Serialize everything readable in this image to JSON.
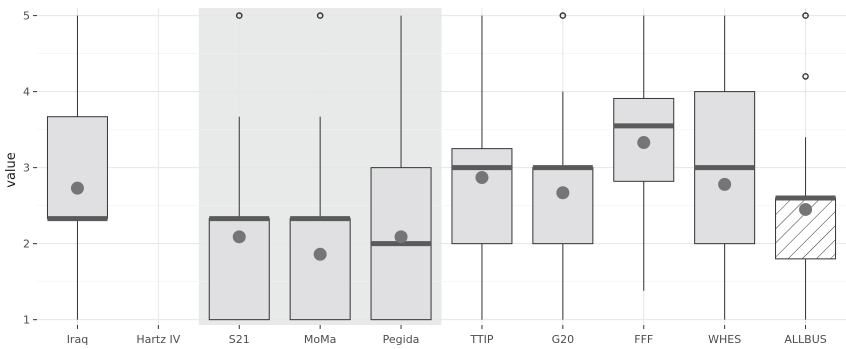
{
  "chart_data": {
    "type": "boxplot",
    "title": "",
    "xlabel": "",
    "ylabel": "value",
    "ylim": [
      0.93,
      5.1
    ],
    "y_ticks": [
      1,
      2,
      3,
      4,
      5
    ],
    "grid": true,
    "highlight_band": [
      "S21",
      "Pegida"
    ],
    "colors": {
      "box_fill": "#e0e0e3",
      "band_fill": "#e8eaea",
      "median": "#5a5a5a",
      "mean_point": "#757575",
      "grid_major": "#e6e6e6",
      "grid_minor": "#f2f2f2",
      "whisker": "#333333"
    },
    "categories": [
      "Iraq",
      "Hartz IV",
      "S21",
      "MoMa",
      "Pegida",
      "TTIP",
      "G20",
      "FFF",
      "WHES",
      "ALLBUS"
    ],
    "boxes": [
      {
        "category": "Iraq",
        "min": 1,
        "q1": 2.33,
        "median": 2.33,
        "q3": 3.67,
        "max": 5,
        "mean": 2.73,
        "outliers": [],
        "hatched": false
      },
      {
        "category": "Hartz IV",
        "min": null,
        "q1": null,
        "median": null,
        "q3": null,
        "max": null,
        "mean": null,
        "outliers": [],
        "hatched": false
      },
      {
        "category": "S21",
        "min": 1,
        "q1": 1,
        "median": 2.33,
        "q3": 2.33,
        "max": 3.67,
        "mean": 2.09,
        "outliers": [
          5
        ],
        "hatched": false
      },
      {
        "category": "MoMa",
        "min": 1,
        "q1": 1,
        "median": 2.33,
        "q3": 2.33,
        "max": 3.67,
        "mean": 1.86,
        "outliers": [
          5
        ],
        "hatched": false
      },
      {
        "category": "Pegida",
        "min": 1,
        "q1": 1,
        "median": 2,
        "q3": 3,
        "max": 5,
        "mean": 2.09,
        "outliers": [],
        "hatched": false
      },
      {
        "category": "TTIP",
        "min": 1,
        "q1": 2,
        "median": 3,
        "q3": 3.25,
        "max": 5,
        "mean": 2.87,
        "outliers": [],
        "hatched": false
      },
      {
        "category": "G20",
        "min": 1,
        "q1": 2,
        "median": 3,
        "q3": 3,
        "max": 4,
        "mean": 2.67,
        "outliers": [
          5
        ],
        "hatched": false
      },
      {
        "category": "FFF",
        "min": 1.38,
        "q1": 2.82,
        "median": 3.55,
        "q3": 3.91,
        "max": 5,
        "mean": 3.33,
        "outliers": [],
        "hatched": false
      },
      {
        "category": "WHES",
        "min": 1,
        "q1": 2,
        "median": 3,
        "q3": 4,
        "max": 5,
        "mean": 2.78,
        "outliers": [],
        "hatched": false
      },
      {
        "category": "ALLBUS",
        "min": 1,
        "q1": 1.8,
        "median": 2.6,
        "q3": 2.6,
        "max": 3.4,
        "mean": 2.45,
        "outliers": [
          4.2,
          5
        ],
        "hatched": true
      }
    ]
  }
}
